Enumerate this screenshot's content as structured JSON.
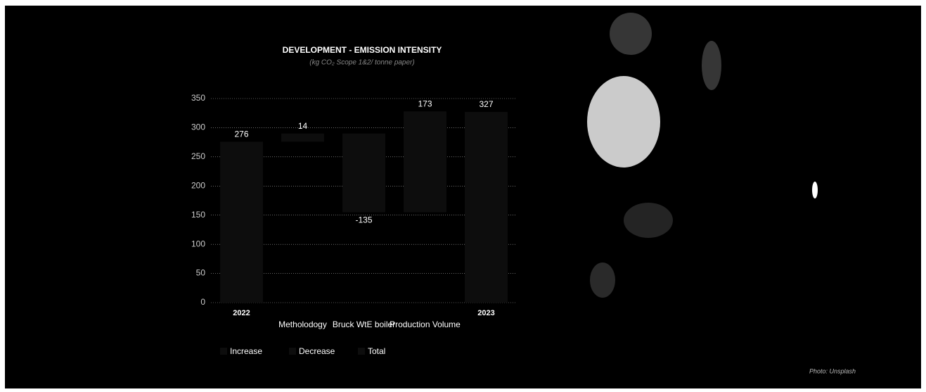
{
  "chart_data": {
    "type": "waterfall",
    "title": "DEVELOPMENT - EMISSION INTENSITY",
    "subtitle": "(kg CO₂ Scope 1&2/ tonne paper)",
    "categories": [
      "2022",
      "Metholodogy",
      "Bruck WtE boiler",
      "Production Volume",
      "2023"
    ],
    "values": [
      276,
      14,
      -135,
      173,
      327
    ],
    "measures": [
      "Total",
      "Increase",
      "Decrease",
      "Increase",
      "Total"
    ],
    "legend": [
      {
        "name": "Increase",
        "color": "#0d0d0d"
      },
      {
        "name": "Decrease",
        "color": "#0d0d0d"
      },
      {
        "name": "Total",
        "color": "#0d0d0d"
      }
    ],
    "ylim": [
      0,
      350
    ],
    "yticks": [
      0,
      50,
      100,
      150,
      200,
      250,
      300,
      350
    ],
    "grid": true
  },
  "credit": "Photo: Unsplash"
}
